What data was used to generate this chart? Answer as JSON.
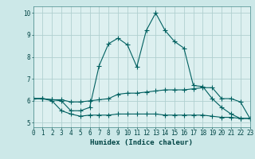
{
  "xlabel": "Humidex (Indice chaleur)",
  "xlim": [
    0,
    23
  ],
  "ylim": [
    4.8,
    10.3
  ],
  "background_color": "#cce8e8",
  "plot_bg_color": "#ddf0f0",
  "grid_color": "#b0d0d0",
  "line_color": "#006060",
  "series": {
    "main": {
      "x": [
        0,
        1,
        2,
        3,
        4,
        5,
        6,
        7,
        8,
        9,
        10,
        11,
        12,
        13,
        14,
        15,
        16,
        17,
        18,
        19,
        20,
        21,
        22,
        23
      ],
      "y": [
        6.1,
        6.1,
        6.05,
        6.0,
        5.55,
        5.55,
        5.7,
        7.6,
        8.6,
        8.85,
        8.55,
        7.55,
        9.2,
        10.0,
        9.2,
        8.7,
        8.4,
        6.7,
        6.65,
        6.1,
        5.7,
        5.4,
        5.2,
        5.2
      ]
    },
    "upper": {
      "x": [
        0,
        1,
        2,
        3,
        4,
        5,
        6,
        7,
        8,
        9,
        10,
        11,
        12,
        13,
        14,
        15,
        16,
        17,
        18,
        19,
        20,
        21,
        22,
        23
      ],
      "y": [
        6.1,
        6.1,
        6.05,
        6.05,
        5.95,
        5.95,
        6.0,
        6.05,
        6.1,
        6.3,
        6.35,
        6.35,
        6.4,
        6.45,
        6.5,
        6.5,
        6.5,
        6.55,
        6.6,
        6.6,
        6.1,
        6.1,
        5.95,
        5.2
      ]
    },
    "lower": {
      "x": [
        0,
        1,
        2,
        3,
        4,
        5,
        6,
        7,
        8,
        9,
        10,
        11,
        12,
        13,
        14,
        15,
        16,
        17,
        18,
        19,
        20,
        21,
        22,
        23
      ],
      "y": [
        6.1,
        6.1,
        6.0,
        5.55,
        5.4,
        5.3,
        5.35,
        5.35,
        5.35,
        5.4,
        5.4,
        5.4,
        5.4,
        5.4,
        5.35,
        5.35,
        5.35,
        5.35,
        5.35,
        5.3,
        5.25,
        5.25,
        5.2,
        5.2
      ]
    }
  }
}
